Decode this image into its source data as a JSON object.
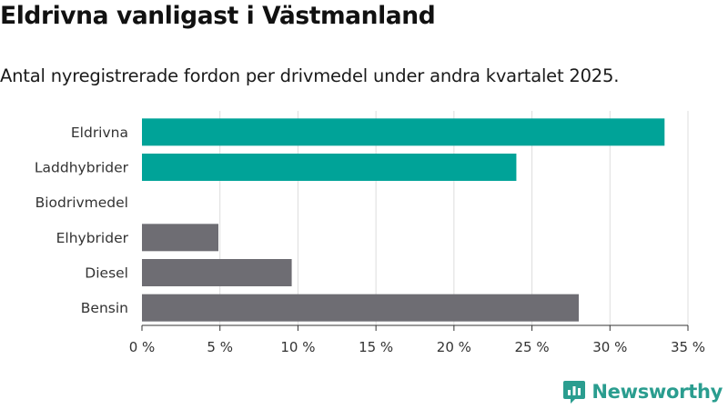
{
  "title": "Eldrivna vanligast i Västmanland",
  "subtitle": "Antal nyregistrerade fordon per drivmedel under andra kvartalet 2025.",
  "brand": {
    "name": "Newsworthy",
    "color": "#2a9d8f",
    "icon": "newsworthy-logo-icon"
  },
  "colors": {
    "highlight": "#00a398",
    "default": "#6e6d73",
    "grid": "#dddddd",
    "axis": "#333333"
  },
  "chart_data": {
    "type": "bar",
    "orientation": "horizontal",
    "categories": [
      "Eldrivna",
      "Laddhybrider",
      "Biodrivmedel",
      "Elhybrider",
      "Diesel",
      "Bensin"
    ],
    "values": [
      33.5,
      24.0,
      0,
      4.9,
      9.6,
      28.0
    ],
    "bar_colors": [
      "#00a398",
      "#00a398",
      "#6e6d73",
      "#6e6d73",
      "#6e6d73",
      "#6e6d73"
    ],
    "xlim": [
      0,
      35
    ],
    "xticks": [
      0,
      5,
      10,
      15,
      20,
      25,
      30,
      35
    ],
    "xtick_labels": [
      "0 %",
      "5 %",
      "10 %",
      "15 %",
      "20 %",
      "25 %",
      "30 %",
      "35 %"
    ],
    "xlabel": "",
    "ylabel": "",
    "grid": true,
    "legend": "none"
  }
}
